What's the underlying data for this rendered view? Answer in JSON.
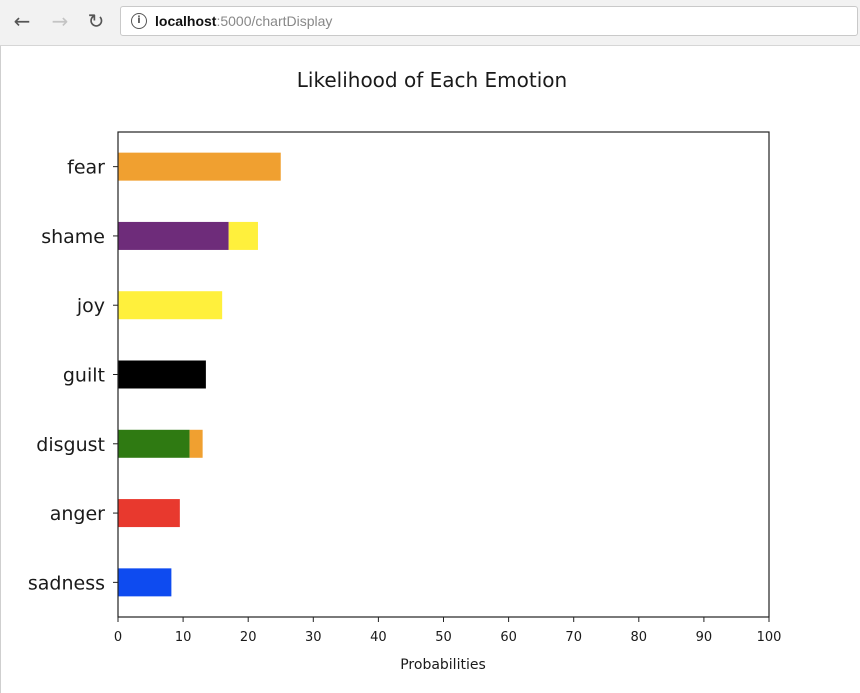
{
  "browser": {
    "url_host": "localhost",
    "url_path": ":5000/chartDisplay",
    "back_icon": "←",
    "forward_icon": "→",
    "reload_icon": "↻",
    "info_icon": "i"
  },
  "chart_data": {
    "type": "bar",
    "orientation": "horizontal",
    "stacked": true,
    "title": "Likelihood of Each Emotion",
    "xlabel": "Probabilities",
    "ylabel": "",
    "xlim": [
      0,
      100
    ],
    "xticks": [
      0,
      10,
      20,
      30,
      40,
      50,
      60,
      70,
      80,
      90,
      100
    ],
    "categories": [
      "fear",
      "shame",
      "joy",
      "guilt",
      "disgust",
      "anger",
      "sadness"
    ],
    "bars": [
      {
        "category": "fear",
        "segments": [
          {
            "value": 25,
            "color": "#F0A030"
          }
        ]
      },
      {
        "category": "shame",
        "segments": [
          {
            "value": 17,
            "color": "#6E2C7A"
          },
          {
            "value": 4.5,
            "color": "#FFF03C"
          }
        ]
      },
      {
        "category": "joy",
        "segments": [
          {
            "value": 16,
            "color": "#FFF03C"
          }
        ]
      },
      {
        "category": "guilt",
        "segments": [
          {
            "value": 13.5,
            "color": "#000000"
          }
        ]
      },
      {
        "category": "disgust",
        "segments": [
          {
            "value": 11,
            "color": "#2F7A12"
          },
          {
            "value": 2,
            "color": "#F0A030"
          }
        ]
      },
      {
        "category": "anger",
        "segments": [
          {
            "value": 9.5,
            "color": "#E8392E"
          }
        ]
      },
      {
        "category": "sadness",
        "segments": [
          {
            "value": 8.2,
            "color": "#0E4BF0"
          }
        ]
      }
    ],
    "grid": false,
    "legend": "none"
  }
}
